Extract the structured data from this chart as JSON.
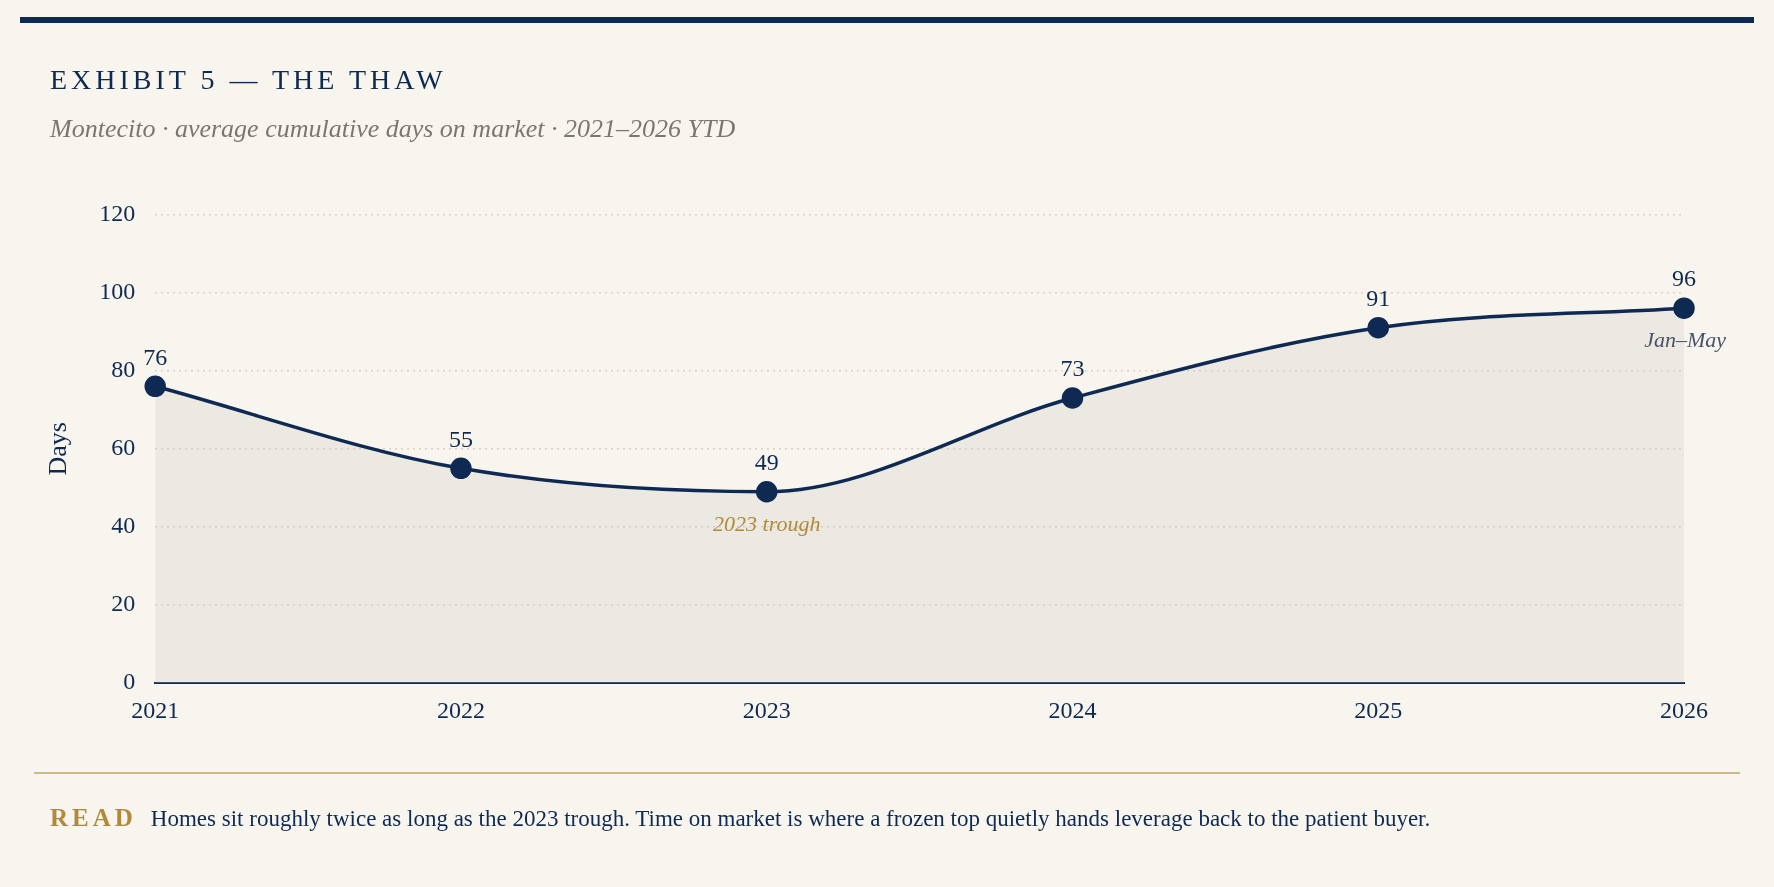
{
  "chart_data": {
    "type": "area",
    "title": "EXHIBIT 5 — THE THAW",
    "subtitle": "Montecito · average cumulative days on market · 2021–2026 YTD",
    "ylabel": "Days",
    "categories": [
      "2021",
      "2022",
      "2023",
      "2024",
      "2025",
      "2026"
    ],
    "values": [
      76,
      55,
      49,
      73,
      91,
      96
    ],
    "color": "#0f2a52",
    "ylim": [
      0,
      120
    ],
    "yticks": [
      0,
      20,
      40,
      60,
      80,
      100,
      120
    ],
    "grid": "y",
    "legend": false,
    "marker": "circle",
    "line_style": "solid",
    "data_labels": true,
    "annotations": [
      {
        "text": "2023 trough",
        "x": "2023",
        "y": 49
      },
      {
        "text": "Jan–May",
        "x": "2026",
        "y": 96
      },
      "READ",
      "Homes sit roughly twice as long as the 2023 trough. Time on market is where a frozen top quietly hands leverage back to the patient buyer."
    ]
  }
}
